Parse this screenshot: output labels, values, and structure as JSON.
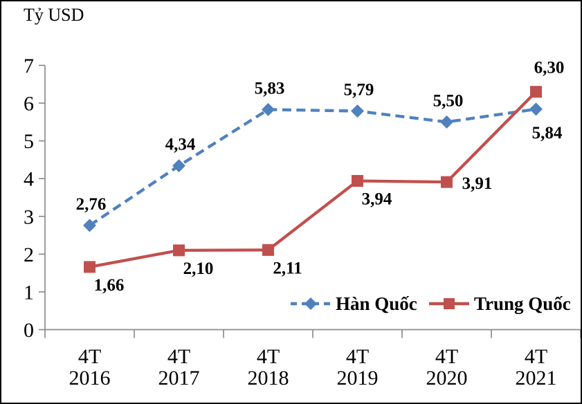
{
  "window": {
    "background": "#FFFFFF",
    "border_color": "#000000"
  },
  "chart_data": {
    "type": "line",
    "title": "Tỷ USD",
    "xlabel": "",
    "ylabel": "Tỷ USD",
    "categories": [
      [
        "4T",
        "2016"
      ],
      [
        "4T",
        "2017"
      ],
      [
        "4T",
        "2018"
      ],
      [
        "4T",
        "2019"
      ],
      [
        "4T",
        "2020"
      ],
      [
        "4T",
        "2021"
      ]
    ],
    "ylim": [
      0,
      7
    ],
    "ytick_step": 1,
    "ytick_labels": [
      "0",
      "1",
      "2",
      "3",
      "4",
      "5",
      "6",
      "7"
    ],
    "grid": false,
    "legend_position": "inside-bottom-right",
    "axis_color": "#8C8C8C",
    "text_color": "#000000",
    "decimal_separator": ",",
    "series": [
      {
        "name": "Hàn Quốc",
        "color": "#4F81BD",
        "marker": "diamond",
        "line_style": "dashed",
        "values": [
          2.76,
          4.34,
          5.83,
          5.79,
          5.5,
          5.84
        ],
        "labels": [
          "2,76",
          "4,34",
          "5,83",
          "5,79",
          "5,50",
          "5,84"
        ],
        "label_placements": [
          "above",
          "above",
          "above",
          "above",
          "above",
          "below"
        ]
      },
      {
        "name": "Trung Quốc",
        "color": "#C0504D",
        "marker": "square",
        "line_style": "solid",
        "values": [
          1.66,
          2.1,
          2.11,
          3.94,
          3.91,
          6.3
        ],
        "labels": [
          "1,66",
          "2,10",
          "2,11",
          "3,94",
          "3,91",
          "6,30"
        ],
        "label_placements": [
          "below-right",
          "below-right",
          "below-right",
          "below-right",
          "right",
          "above-right"
        ]
      }
    ]
  }
}
